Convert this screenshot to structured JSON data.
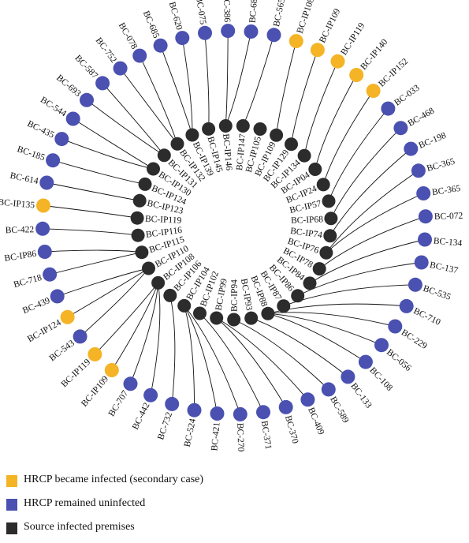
{
  "colors": {
    "secondary": "#F4B426",
    "uninfected": "#4A51B1",
    "source": "#2C2C2C",
    "edge": "#111111"
  },
  "legend": [
    {
      "label": "HRCP became infected (secondary case)",
      "color": "#F4B426"
    },
    {
      "label": "HRCP remained uninfected",
      "color": "#4A51B1"
    },
    {
      "label": "Source infected premises",
      "color": "#2C2C2C"
    }
  ],
  "outer_nodes": [
    {
      "label": "BC-565",
      "status": "uninfected"
    },
    {
      "label": "BC-IP108",
      "status": "secondary"
    },
    {
      "label": "BC-IP109",
      "status": "secondary"
    },
    {
      "label": "BC-IP119",
      "status": "secondary"
    },
    {
      "label": "BC-IP140",
      "status": "secondary"
    },
    {
      "label": "BC-IP152",
      "status": "secondary"
    },
    {
      "label": "BC-033",
      "status": "uninfected"
    },
    {
      "label": "BC-468",
      "status": "uninfected"
    },
    {
      "label": "BC-198",
      "status": "uninfected"
    },
    {
      "label": "BC-365",
      "status": "uninfected"
    },
    {
      "label": "BC-365",
      "status": "uninfected"
    },
    {
      "label": "BC-072",
      "status": "uninfected"
    },
    {
      "label": "BC-134",
      "status": "uninfected"
    },
    {
      "label": "BC-137",
      "status": "uninfected"
    },
    {
      "label": "BC-535",
      "status": "uninfected"
    },
    {
      "label": "BC-710",
      "status": "uninfected"
    },
    {
      "label": "BC-229",
      "status": "uninfected"
    },
    {
      "label": "BC-056",
      "status": "uninfected"
    },
    {
      "label": "BC-108",
      "status": "uninfected"
    },
    {
      "label": "BC-133",
      "status": "uninfected"
    },
    {
      "label": "BC-589",
      "status": "uninfected"
    },
    {
      "label": "BC-409",
      "status": "uninfected"
    },
    {
      "label": "BC-370",
      "status": "uninfected"
    },
    {
      "label": "BC-371",
      "status": "uninfected"
    },
    {
      "label": "BC-270",
      "status": "uninfected"
    },
    {
      "label": "BC-421",
      "status": "uninfected"
    },
    {
      "label": "BC-524",
      "status": "uninfected"
    },
    {
      "label": "BC-732",
      "status": "uninfected"
    },
    {
      "label": "BC-442",
      "status": "uninfected"
    },
    {
      "label": "BC-707",
      "status": "uninfected"
    },
    {
      "label": "BC-IP109",
      "status": "secondary"
    },
    {
      "label": "BC-IP119",
      "status": "secondary"
    },
    {
      "label": "BC-543",
      "status": "uninfected"
    },
    {
      "label": "BC-IP124",
      "status": "secondary"
    },
    {
      "label": "BC-439",
      "status": "uninfected"
    },
    {
      "label": "BC-718",
      "status": "uninfected"
    },
    {
      "label": "BC-IP86",
      "status": "uninfected"
    },
    {
      "label": "BC-422",
      "status": "uninfected"
    },
    {
      "label": "BC-IP135",
      "status": "secondary"
    },
    {
      "label": "BC-614",
      "status": "uninfected"
    },
    {
      "label": "BC-185",
      "status": "uninfected"
    },
    {
      "label": "BC-435",
      "status": "uninfected"
    },
    {
      "label": "BC-544",
      "status": "uninfected"
    },
    {
      "label": "BC-693",
      "status": "uninfected"
    },
    {
      "label": "BC-587",
      "status": "uninfected"
    },
    {
      "label": "BC-752",
      "status": "uninfected"
    },
    {
      "label": "BC-078",
      "status": "uninfected"
    },
    {
      "label": "BC-685",
      "status": "uninfected"
    },
    {
      "label": "BC-620",
      "status": "uninfected"
    },
    {
      "label": "BC-075",
      "status": "uninfected"
    },
    {
      "label": "BC-386",
      "status": "uninfected"
    },
    {
      "label": "BC-683",
      "status": "uninfected"
    }
  ],
  "source_nodes": [
    {
      "label": "BC-IP146"
    },
    {
      "label": "BC-IP147"
    },
    {
      "label": "BC-IP105"
    },
    {
      "label": "BC-IP109"
    },
    {
      "label": "BC-IP129"
    },
    {
      "label": "BC-IP134"
    },
    {
      "label": "BC-IP04"
    },
    {
      "label": "BC-IP24"
    },
    {
      "label": "BC-IP57"
    },
    {
      "label": "BC-IP68"
    },
    {
      "label": "BC-IP74"
    },
    {
      "label": "BC-IP76"
    },
    {
      "label": "BC-IP78"
    },
    {
      "label": "BC-IP84"
    },
    {
      "label": "BC-IP86"
    },
    {
      "label": "BC-IP87"
    },
    {
      "label": "BC-IP88"
    },
    {
      "label": "BC-IP93"
    },
    {
      "label": "BC-IP94"
    },
    {
      "label": "BC-IP99"
    },
    {
      "label": "BC-IP102"
    },
    {
      "label": "BC-IP104"
    },
    {
      "label": "BC-IP106"
    },
    {
      "label": "BC-IP108"
    },
    {
      "label": "BC-IP110"
    },
    {
      "label": "BC-IP115"
    },
    {
      "label": "BC-IP116"
    },
    {
      "label": "BC-IP119"
    },
    {
      "label": "BC-IP123"
    },
    {
      "label": "BC-IP124"
    },
    {
      "label": "BC-IP130"
    },
    {
      "label": "BC-IP131"
    },
    {
      "label": "BC-IP132"
    },
    {
      "label": "BC-IP139"
    },
    {
      "label": "BC-IP145"
    }
  ],
  "links": [
    [
      0,
      1
    ],
    [
      1,
      3
    ],
    [
      2,
      4
    ],
    [
      3,
      5
    ],
    [
      4,
      6
    ],
    [
      5,
      7
    ],
    [
      6,
      8
    ],
    [
      7,
      9
    ],
    [
      8,
      10
    ],
    [
      9,
      11
    ],
    [
      10,
      11
    ],
    [
      11,
      12
    ],
    [
      12,
      13
    ],
    [
      13,
      14
    ],
    [
      14,
      15
    ],
    [
      15,
      16
    ],
    [
      16,
      16
    ],
    [
      17,
      16
    ],
    [
      18,
      16
    ],
    [
      19,
      17
    ],
    [
      20,
      18
    ],
    [
      21,
      19
    ],
    [
      22,
      19
    ],
    [
      23,
      20
    ],
    [
      24,
      21
    ],
    [
      25,
      21
    ],
    [
      26,
      21
    ],
    [
      27,
      22
    ],
    [
      28,
      23
    ],
    [
      29,
      23
    ],
    [
      30,
      23
    ],
    [
      31,
      23
    ],
    [
      32,
      24
    ],
    [
      33,
      24
    ],
    [
      34,
      24
    ],
    [
      35,
      25
    ],
    [
      36,
      25
    ],
    [
      37,
      26
    ],
    [
      38,
      27
    ],
    [
      39,
      28
    ],
    [
      40,
      29
    ],
    [
      41,
      30
    ],
    [
      42,
      30
    ],
    [
      43,
      31
    ],
    [
      44,
      31
    ],
    [
      45,
      32
    ],
    [
      46,
      32
    ],
    [
      47,
      33
    ],
    [
      48,
      33
    ],
    [
      49,
      34
    ],
    [
      50,
      0
    ],
    [
      51,
      0
    ]
  ]
}
